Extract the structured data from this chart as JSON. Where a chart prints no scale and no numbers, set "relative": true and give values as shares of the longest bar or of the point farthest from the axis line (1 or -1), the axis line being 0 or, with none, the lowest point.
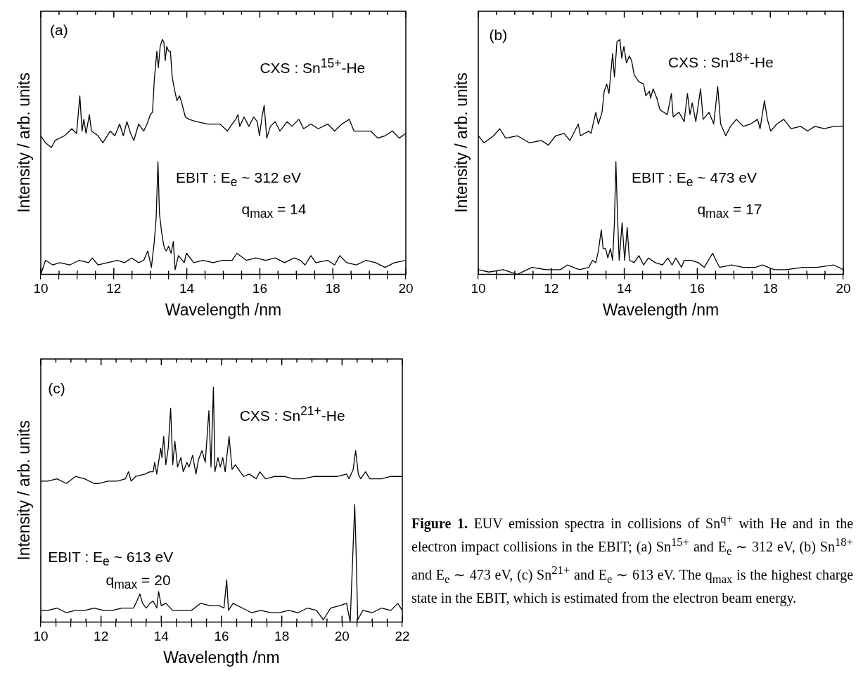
{
  "chart_data": [
    {
      "type": "line",
      "xlabel": "Wavelength /nm",
      "ylabel": "Intensity / arb. units",
      "relative": true,
      "marker": "none",
      "xlim": [
        10,
        20
      ],
      "xticks": [
        10,
        {
          "value": 10.5,
          "label": null
        },
        {
          "value": 11,
          "label": null
        },
        {
          "value": 11.5,
          "label": null
        },
        12,
        {
          "value": 12.5,
          "label": null
        },
        {
          "value": 13,
          "label": null
        },
        {
          "value": 13.5,
          "label": null
        },
        14,
        {
          "value": 14.5,
          "label": null
        },
        {
          "value": 15,
          "label": null
        },
        {
          "value": 15.5,
          "label": null
        },
        16,
        {
          "value": 16.5,
          "label": null
        },
        {
          "value": 17,
          "label": null
        },
        {
          "value": 17.5,
          "label": null
        },
        18,
        {
          "value": 18.5,
          "label": null
        },
        {
          "value": 19,
          "label": null
        },
        {
          "value": 19.5,
          "label": null
        },
        20
      ],
      "annotations": [
        "(a)",
        "q$_{max}$ = 14"
      ],
      "series": [
        {
          "name": "CXS : Sn$^{15+}$-He",
          "color": "#000000",
          "x": [
            10,
            10.13,
            10.29,
            10.39,
            10.65,
            10.85,
            10.98,
            11.07,
            11.13,
            11.18,
            11.24,
            11.33,
            11.39,
            11.57,
            11.7,
            11.9,
            12.03,
            12.16,
            12.26,
            12.36,
            12.46,
            12.55,
            12.68,
            12.82,
            12.91,
            13.0,
            13.06,
            13.11,
            13.18,
            13.22,
            13.27,
            13.33,
            13.37,
            13.41,
            13.45,
            13.5,
            13.55,
            13.6,
            13.67,
            13.73,
            13.8,
            13.86,
            13.96,
            14.06,
            14.26,
            14.58,
            14.91,
            15.11,
            15.24,
            15.34,
            15.4,
            15.45,
            15.57,
            15.7,
            15.83,
            15.93,
            15.99,
            16.06,
            16.12,
            16.19,
            16.29,
            16.42,
            16.55,
            16.75,
            16.88,
            17.07,
            17.2,
            17.4,
            17.6,
            17.86,
            18.05,
            18.25,
            18.45,
            18.58,
            18.84,
            19.04,
            19.23,
            19.43,
            19.63,
            19.82,
            20
          ],
          "values": [
            0.59,
            0.56,
            0.54,
            0.57,
            0.59,
            0.62,
            0.6,
            0.76,
            0.61,
            0.66,
            0.6,
            0.68,
            0.61,
            0.59,
            0.56,
            0.61,
            0.59,
            0.64,
            0.59,
            0.65,
            0.6,
            0.57,
            0.64,
            0.61,
            0.64,
            0.68,
            0.69,
            0.83,
            0.95,
            0.88,
            0.97,
            1.0,
            0.99,
            0.91,
            0.97,
            0.95,
            0.95,
            0.84,
            0.78,
            0.74,
            0.76,
            0.73,
            0.67,
            0.66,
            0.65,
            0.64,
            0.64,
            0.61,
            0.64,
            0.66,
            0.68,
            0.63,
            0.67,
            0.63,
            0.67,
            0.65,
            0.59,
            0.67,
            0.72,
            0.58,
            0.63,
            0.65,
            0.61,
            0.65,
            0.63,
            0.66,
            0.62,
            0.64,
            0.62,
            0.64,
            0.61,
            0.64,
            0.66,
            0.61,
            0.61,
            0.61,
            0.58,
            0.59,
            0.61,
            0.58,
            0.6
          ]
        },
        {
          "name": "EBIT : E$_{e}$ ~ 312 eV",
          "color": "#000000",
          "x": [
            10,
            10.13,
            10.33,
            10.52,
            10.79,
            11.05,
            11.31,
            11.41,
            11.57,
            11.83,
            12.1,
            12.29,
            12.49,
            12.68,
            12.82,
            12.93,
            13.03,
            13.11,
            13.16,
            13.21,
            13.25,
            13.31,
            13.35,
            13.39,
            13.44,
            13.5,
            13.57,
            13.63,
            13.68,
            13.77,
            13.93,
            13.99,
            14.19,
            14.45,
            14.72,
            14.98,
            15.24,
            15.37,
            15.63,
            15.89,
            16.16,
            16.42,
            16.68,
            16.94,
            17.11,
            17.24,
            17.4,
            17.53,
            17.86,
            18.05,
            18.19,
            18.38,
            18.64,
            18.91,
            19.17,
            19.43,
            19.69,
            20
          ],
          "values": [
            0.0,
            0.06,
            0.04,
            0.05,
            0.04,
            0.06,
            0.05,
            0.07,
            0.04,
            0.05,
            0.06,
            0.05,
            0.07,
            0.05,
            0.06,
            0.1,
            0.03,
            0.14,
            0.24,
            0.48,
            0.26,
            0.18,
            0.14,
            0.11,
            0.1,
            0.12,
            0.09,
            0.14,
            0.02,
            0.08,
            0.05,
            0.09,
            0.05,
            0.06,
            0.05,
            0.06,
            0.06,
            0.09,
            0.06,
            0.07,
            0.06,
            0.07,
            0.05,
            0.07,
            0.06,
            0.04,
            0.08,
            0.05,
            0.06,
            0.04,
            0.08,
            0.05,
            0.04,
            0.06,
            0.05,
            0.03,
            0.05,
            0.06
          ]
        }
      ]
    },
    {
      "type": "line",
      "xlabel": "Wavelength /nm",
      "ylabel": "Intensity / arb. units",
      "relative": true,
      "marker": "none",
      "xlim": [
        10,
        20
      ],
      "xticks": [
        10,
        {
          "value": 10.5,
          "label": null
        },
        {
          "value": 11,
          "label": null
        },
        {
          "value": 11.5,
          "label": null
        },
        12,
        {
          "value": 12.5,
          "label": null
        },
        {
          "value": 13,
          "label": null
        },
        {
          "value": 13.5,
          "label": null
        },
        14,
        {
          "value": 14.5,
          "label": null
        },
        {
          "value": 15,
          "label": null
        },
        {
          "value": 15.5,
          "label": null
        },
        16,
        {
          "value": 16.5,
          "label": null
        },
        {
          "value": 17,
          "label": null
        },
        {
          "value": 17.5,
          "label": null
        },
        18,
        {
          "value": 18.5,
          "label": null
        },
        {
          "value": 19,
          "label": null
        },
        {
          "value": 19.5,
          "label": null
        },
        20
      ],
      "annotations": [
        "(b)",
        "q$_{max}$ = 17"
      ],
      "series": [
        {
          "name": "CXS : Sn$^{18+}$-He",
          "color": "#000000",
          "x": [
            10,
            10.16,
            10.42,
            10.59,
            10.75,
            11.07,
            11.4,
            11.73,
            11.92,
            12.12,
            12.35,
            12.51,
            12.74,
            12.8,
            13.03,
            13.09,
            13.16,
            13.22,
            13.29,
            13.39,
            13.45,
            13.52,
            13.58,
            13.68,
            13.73,
            13.8,
            13.88,
            13.93,
            13.99,
            14.06,
            14.14,
            14.2,
            14.27,
            14.4,
            14.53,
            14.59,
            14.69,
            14.72,
            14.79,
            14.89,
            14.98,
            15.18,
            15.29,
            15.34,
            15.5,
            15.64,
            15.73,
            15.8,
            15.86,
            15.96,
            16.09,
            16.16,
            16.32,
            16.45,
            16.56,
            16.64,
            16.78,
            16.91,
            17.07,
            17.26,
            17.46,
            17.65,
            17.72,
            17.84,
            17.92,
            18.01,
            18.18,
            18.37,
            18.57,
            18.83,
            19.02,
            19.22,
            19.48,
            19.74,
            20
          ],
          "values": [
            0.59,
            0.56,
            0.59,
            0.62,
            0.58,
            0.59,
            0.56,
            0.57,
            0.55,
            0.59,
            0.6,
            0.57,
            0.64,
            0.59,
            0.61,
            0.6,
            0.65,
            0.69,
            0.64,
            0.69,
            0.78,
            0.81,
            0.77,
            0.94,
            0.84,
            0.99,
            1.0,
            0.92,
            0.97,
            0.9,
            0.93,
            0.91,
            0.85,
            0.82,
            0.81,
            0.76,
            0.78,
            0.75,
            0.79,
            0.75,
            0.7,
            0.68,
            0.77,
            0.67,
            0.69,
            0.65,
            0.77,
            0.68,
            0.73,
            0.65,
            0.79,
            0.66,
            0.69,
            0.64,
            0.8,
            0.64,
            0.59,
            0.63,
            0.66,
            0.63,
            0.64,
            0.66,
            0.62,
            0.74,
            0.66,
            0.61,
            0.64,
            0.66,
            0.62,
            0.63,
            0.61,
            0.63,
            0.62,
            0.63,
            0.63
          ]
        },
        {
          "name": "EBIT : E$_{e}$ ~ 473 eV",
          "color": "#000000",
          "x": [
            10,
            10.29,
            10.68,
            11.07,
            11.47,
            11.86,
            12.25,
            12.44,
            12.77,
            13.03,
            13.13,
            13.22,
            13.29,
            13.37,
            13.42,
            13.49,
            13.55,
            13.62,
            13.68,
            13.73,
            13.77,
            13.81,
            13.86,
            13.94,
            14.01,
            14.08,
            14.14,
            14.27,
            14.4,
            14.53,
            14.66,
            14.85,
            15.05,
            15.19,
            15.31,
            15.41,
            15.57,
            15.64,
            15.83,
            16.03,
            16.19,
            16.42,
            16.51,
            16.61,
            16.94,
            17.26,
            17.59,
            17.78,
            18.11,
            18.44,
            18.89,
            19.28,
            19.74,
            20
          ],
          "values": [
            0.02,
            0.01,
            0.02,
            0.0,
            0.03,
            0.02,
            0.02,
            0.04,
            0.02,
            0.03,
            0.06,
            0.05,
            0.1,
            0.19,
            0.11,
            0.11,
            0.07,
            0.11,
            0.06,
            0.22,
            0.48,
            0.27,
            0.06,
            0.22,
            0.06,
            0.2,
            0.06,
            0.05,
            0.08,
            0.04,
            0.07,
            0.05,
            0.04,
            0.07,
            0.04,
            0.07,
            0.03,
            0.06,
            0.06,
            0.05,
            0.03,
            0.09,
            0.06,
            0.03,
            0.04,
            0.03,
            0.03,
            0.04,
            0.02,
            0.02,
            0.03,
            0.03,
            0.04,
            0.02
          ]
        }
      ]
    },
    {
      "type": "line",
      "xlabel": "Wavelength /nm",
      "ylabel": "Intensity / arb. units",
      "relative": true,
      "marker": "none",
      "xlim": [
        10,
        22
      ],
      "xticks": [
        10,
        {
          "value": 10.5,
          "label": null
        },
        {
          "value": 11,
          "label": null
        },
        {
          "value": 11.5,
          "label": null
        },
        12,
        {
          "value": 12.5,
          "label": null
        },
        {
          "value": 13,
          "label": null
        },
        {
          "value": 13.5,
          "label": null
        },
        14,
        {
          "value": 14.5,
          "label": null
        },
        {
          "value": 15,
          "label": null
        },
        {
          "value": 15.5,
          "label": null
        },
        16,
        {
          "value": 16.5,
          "label": null
        },
        {
          "value": 17,
          "label": null
        },
        {
          "value": 17.5,
          "label": null
        },
        18,
        {
          "value": 18.5,
          "label": null
        },
        {
          "value": 19,
          "label": null
        },
        {
          "value": 19.5,
          "label": null
        },
        20,
        {
          "value": 20.5,
          "label": null
        },
        {
          "value": 21,
          "label": null
        },
        {
          "value": 21.5,
          "label": null
        },
        22
      ],
      "annotations": [
        "(c)",
        "q$_{max}$ = 20"
      ],
      "series": [
        {
          "name": "CXS : Sn$^{21+}$-He",
          "color": "#000000",
          "x": [
            10,
            10.23,
            10.54,
            10.85,
            11.15,
            11.46,
            11.77,
            11.92,
            12.23,
            12.54,
            12.81,
            12.91,
            13.0,
            13.15,
            13.46,
            13.62,
            13.73,
            13.78,
            13.85,
            13.98,
            14.02,
            14.08,
            14.15,
            14.23,
            14.31,
            14.38,
            14.45,
            14.54,
            14.65,
            14.73,
            14.85,
            14.92,
            15.04,
            15.15,
            15.23,
            15.35,
            15.46,
            15.58,
            15.65,
            15.73,
            15.78,
            15.88,
            15.96,
            16.04,
            16.12,
            16.25,
            16.35,
            16.46,
            16.62,
            16.73,
            16.92,
            17.15,
            17.27,
            17.46,
            17.77,
            18.08,
            18.38,
            18.69,
            19.08,
            19.46,
            19.85,
            20.15,
            20.23,
            20.37,
            20.45,
            20.54,
            20.62,
            20.78,
            20.92,
            21.31,
            21.62,
            21.85,
            22
          ],
          "values": [
            0.6,
            0.6,
            0.61,
            0.59,
            0.62,
            0.61,
            0.59,
            0.59,
            0.6,
            0.6,
            0.61,
            0.64,
            0.6,
            0.62,
            0.63,
            0.64,
            0.64,
            0.68,
            0.63,
            0.74,
            0.7,
            0.79,
            0.67,
            0.74,
            0.91,
            0.67,
            0.77,
            0.66,
            0.7,
            0.64,
            0.68,
            0.66,
            0.71,
            0.63,
            0.69,
            0.73,
            0.68,
            0.9,
            0.66,
            1.0,
            0.64,
            0.7,
            0.66,
            0.7,
            0.64,
            0.79,
            0.65,
            0.67,
            0.64,
            0.62,
            0.63,
            0.61,
            0.64,
            0.61,
            0.62,
            0.62,
            0.61,
            0.61,
            0.62,
            0.62,
            0.62,
            0.63,
            0.61,
            0.65,
            0.73,
            0.63,
            0.61,
            0.64,
            0.61,
            0.61,
            0.62,
            0.62,
            0.62
          ]
        },
        {
          "name": "EBIT : E$_{e}$ ~ 613 eV",
          "color": "#000000",
          "x": [
            10,
            10.23,
            10.54,
            10.85,
            11.15,
            11.46,
            11.77,
            12.08,
            12.38,
            12.69,
            13.08,
            13.19,
            13.29,
            13.38,
            13.5,
            13.62,
            13.73,
            13.85,
            13.91,
            14.0,
            14.15,
            14.38,
            14.69,
            15.0,
            15.31,
            15.62,
            15.92,
            16.08,
            16.17,
            16.23,
            16.38,
            16.69,
            17.0,
            17.31,
            17.62,
            17.92,
            18.23,
            18.54,
            18.85,
            19.15,
            19.38,
            19.62,
            19.92,
            20.15,
            20.27,
            20.37,
            20.42,
            20.46,
            20.52,
            20.69,
            21.0,
            21.31,
            21.62,
            21.85,
            22
          ],
          "values": [
            0.05,
            0.05,
            0.06,
            0.04,
            0.05,
            0.05,
            0.06,
            0.05,
            0.05,
            0.06,
            0.06,
            0.09,
            0.12,
            0.08,
            0.06,
            0.08,
            0.09,
            0.06,
            0.13,
            0.07,
            0.08,
            0.05,
            0.05,
            0.05,
            0.08,
            0.07,
            0.07,
            0.06,
            0.18,
            0.05,
            0.08,
            0.06,
            0.04,
            0.05,
            0.04,
            0.04,
            0.05,
            0.04,
            0.06,
            0.05,
            0.01,
            0.06,
            0.07,
            0.08,
            0.0,
            0.33,
            0.5,
            0.33,
            0.01,
            0.05,
            0.04,
            0.06,
            0.05,
            0.08,
            0.05
          ]
        }
      ]
    },
    {
      "type": "other",
      "title": "Figure 1.",
      "annotations": [
        "EUV emission spectra in collisions of Sn$^{q+}$ with He and in the electron impact collisions in the EBIT; (a) Sn$^{15+}$ and E$_{e}$ ∼ 312 eV, (b) Sn$^{18+}$ and E$_{e}$ ∼ 473 eV, (c) Sn$^{21+}$ and E$_{e}$ ∼ 613 eV. The q$_{max}$ is the highest charge state in the EBIT, which is estimated from the electron beam energy."
      ]
    }
  ]
}
